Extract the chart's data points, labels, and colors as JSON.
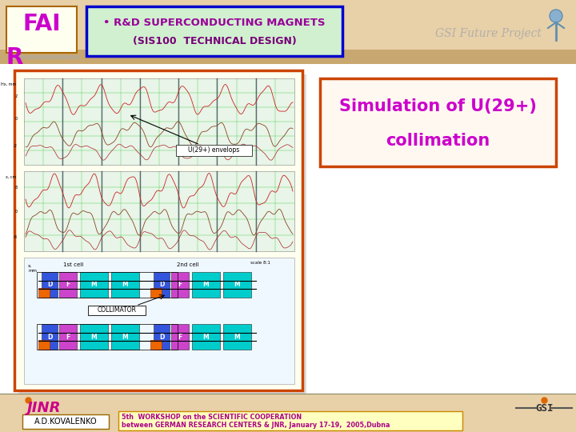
{
  "bg_color": "#f5e8d0",
  "title_box_text1": "• R&D SUPERCONDUCTING MAGNETS",
  "title_box_text2": "(SIS100  TECHNICAL DESIGN)",
  "title_box_bg": "#d0f0d0",
  "title_box_border": "#0000cc",
  "fai_r_color": "#cc00cc",
  "fai_r_box_bg": "#fffff0",
  "fai_r_box_border": "#aa6600",
  "gsi_text": "GSI Future Project",
  "sim_text1": "Simulation of U(29+)",
  "sim_text2": "collimation",
  "sim_box_bg": "#fff8f0",
  "sim_box_border": "#cc4400",
  "sim_text_color": "#cc00cc",
  "main_image_border": "#cc4400",
  "main_image_bg": "#fffef5",
  "panel_bg": "#fffff0",
  "footer_text1": "A.D.KOVALENKO",
  "footer_text2": "5th  WORKSHOP on the SCIENTIFIC COOPERATION",
  "footer_text3": "between GERMAN RESEARCH CENTERS & JNR, January 17-19,  2005,Dubna",
  "footer_box_bg": "#ffffc0",
  "footer_box_border": "#cc8800",
  "jinr_color": "#cc00cc",
  "header_bg": "#e8d0a8",
  "header_stripe_dark": "#c8a870"
}
